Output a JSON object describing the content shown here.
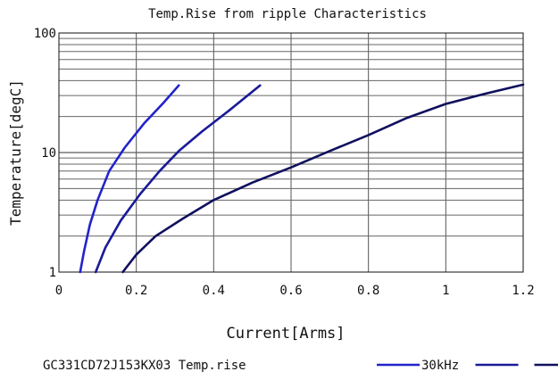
{
  "chart_data": {
    "type": "line",
    "title": "Temp.Rise from ripple Characteristics",
    "xlabel": "Current[Arms]",
    "ylabel": "Temperature[degC]",
    "x_ticks": [
      "0",
      "0.2",
      "0.4",
      "0.6",
      "0.8",
      "1",
      "1.2"
    ],
    "y_ticks": [
      "1",
      "10",
      "100"
    ],
    "xlim": [
      0,
      1.2
    ],
    "ylim": [
      1,
      100
    ],
    "y_scale": "log",
    "grid": true,
    "legend": {
      "prefix": "GC331CD72J153KX03 Temp.rise",
      "position": "bottom"
    },
    "series": [
      {
        "name": "30kHz",
        "color": "#2222cc",
        "points": [
          [
            0.055,
            1.0
          ],
          [
            0.065,
            1.5
          ],
          [
            0.08,
            2.5
          ],
          [
            0.1,
            4.0
          ],
          [
            0.13,
            7.0
          ],
          [
            0.17,
            11.0
          ],
          [
            0.22,
            17.5
          ],
          [
            0.27,
            26.0
          ],
          [
            0.31,
            36.5
          ]
        ]
      },
      {
        "name": "",
        "color": "#1a1a99",
        "points": [
          [
            0.095,
            1.0
          ],
          [
            0.12,
            1.6
          ],
          [
            0.16,
            2.7
          ],
          [
            0.21,
            4.5
          ],
          [
            0.26,
            7.0
          ],
          [
            0.31,
            10.3
          ],
          [
            0.37,
            15.0
          ],
          [
            0.44,
            22.5
          ],
          [
            0.52,
            36.5
          ]
        ]
      },
      {
        "name": "",
        "color": "#10105e",
        "points": [
          [
            0.165,
            1.0
          ],
          [
            0.2,
            1.4
          ],
          [
            0.25,
            2.0
          ],
          [
            0.32,
            2.8
          ],
          [
            0.4,
            4.0
          ],
          [
            0.5,
            5.6
          ],
          [
            0.6,
            7.5
          ],
          [
            0.7,
            10.3
          ],
          [
            0.8,
            14.0
          ],
          [
            0.9,
            19.5
          ],
          [
            1.0,
            25.5
          ],
          [
            1.1,
            31.0
          ],
          [
            1.2,
            37.0
          ]
        ]
      }
    ]
  }
}
